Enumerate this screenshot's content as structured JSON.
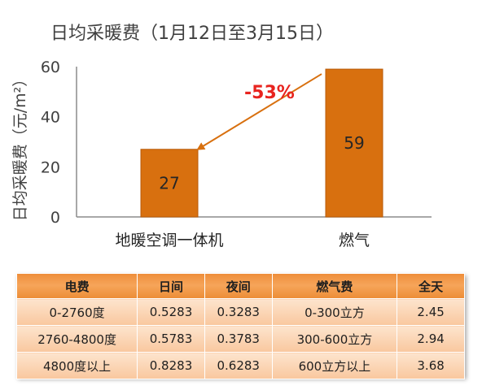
{
  "chart_data": {
    "type": "bar",
    "title": "日均采暖费（1月12日至3月15日）",
    "ylabel": "日均采暖费（元/m²）",
    "xlabel": "",
    "categories": [
      "地暖空调一体机",
      "燃气"
    ],
    "values": [
      27,
      59
    ],
    "data_labels": [
      "27",
      "59"
    ],
    "yticks": [
      0,
      20,
      40,
      60
    ],
    "ylim": [
      0,
      60
    ],
    "grid": false,
    "legend": "none",
    "annotation": {
      "text": "-53%",
      "from": "燃气",
      "to": "地暖空调一体机",
      "color": "#e8241f"
    },
    "colors": {
      "bar": "#d8700f",
      "bar_edge": "#b85a08",
      "arrow": "#d8700f",
      "axis": "#8c8c8c"
    }
  },
  "table": {
    "headers": [
      "电费",
      "日间",
      "夜间",
      "燃气费",
      "全天"
    ],
    "rows": [
      [
        "0-2760度",
        "0.5283",
        "0.3283",
        "0-300立方",
        "2.45"
      ],
      [
        "2760-4800度",
        "0.5783",
        "0.3783",
        "300-600立方",
        "2.94"
      ],
      [
        "4800度以上",
        "0.8283",
        "0.6283",
        "600立方以上",
        "3.68"
      ]
    ]
  }
}
